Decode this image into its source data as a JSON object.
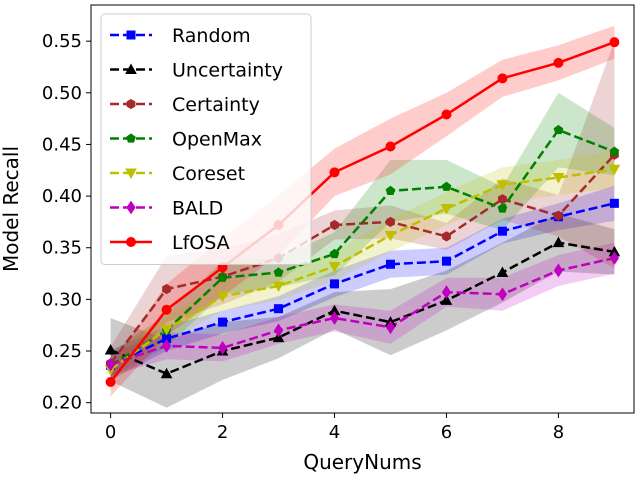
{
  "chart_data": {
    "type": "line",
    "title": "",
    "xlabel": "QueryNums",
    "ylabel": "Model Recall",
    "xlim": [
      -0.35,
      9.35
    ],
    "ylim": [
      0.19,
      0.585
    ],
    "xticks": [
      0,
      2,
      4,
      6,
      8
    ],
    "xtick_labels": [
      "0",
      "2",
      "4",
      "6",
      "8"
    ],
    "yticks": [
      0.2,
      0.25,
      0.3,
      0.35,
      0.4,
      0.45,
      0.5,
      0.55
    ],
    "ytick_labels": [
      "0.20",
      "0.25",
      "0.30",
      "0.35",
      "0.40",
      "0.45",
      "0.50",
      "0.55"
    ],
    "grid": false,
    "legend_position": "top-left",
    "x": [
      0,
      1,
      2,
      3,
      4,
      5,
      6,
      7,
      8,
      9
    ],
    "series": [
      {
        "name": "Random",
        "color": "#0000ff",
        "marker": "square",
        "dash": "dashed",
        "values": [
          0.236,
          0.262,
          0.278,
          0.291,
          0.315,
          0.334,
          0.337,
          0.366,
          0.38,
          0.393
        ],
        "lower": [
          0.222,
          0.25,
          0.267,
          0.279,
          0.302,
          0.321,
          0.324,
          0.354,
          0.367,
          0.376
        ],
        "upper": [
          0.251,
          0.274,
          0.289,
          0.303,
          0.328,
          0.347,
          0.35,
          0.378,
          0.393,
          0.41
        ]
      },
      {
        "name": "Uncertainty",
        "color": "#000000",
        "marker": "triangle",
        "dash": "dashed",
        "values": [
          0.251,
          0.228,
          0.25,
          0.263,
          0.289,
          0.278,
          0.299,
          0.326,
          0.355,
          0.346
        ],
        "lower": [
          0.221,
          0.195,
          0.222,
          0.243,
          0.271,
          0.246,
          0.27,
          0.297,
          0.327,
          0.324
        ],
        "upper": [
          0.282,
          0.261,
          0.278,
          0.283,
          0.307,
          0.31,
          0.328,
          0.355,
          0.383,
          0.368
        ]
      },
      {
        "name": "Certainty",
        "color": "#a52a2a",
        "marker": "hexagon",
        "dash": "dashed",
        "values": [
          0.238,
          0.31,
          0.322,
          0.34,
          0.372,
          0.375,
          0.361,
          0.397,
          0.381,
          0.44
        ],
        "lower": [
          0.222,
          0.278,
          0.295,
          0.317,
          0.358,
          0.359,
          0.348,
          0.377,
          0.361,
          0.33
        ],
        "upper": [
          0.254,
          0.342,
          0.349,
          0.363,
          0.386,
          0.391,
          0.374,
          0.417,
          0.401,
          0.55
        ]
      },
      {
        "name": "OpenMax",
        "color": "#008000",
        "marker": "pentagon",
        "dash": "dashed",
        "values": [
          0.236,
          0.27,
          0.321,
          0.326,
          0.344,
          0.405,
          0.409,
          0.388,
          0.464,
          0.443
        ],
        "lower": [
          0.224,
          0.254,
          0.305,
          0.312,
          0.323,
          0.375,
          0.383,
          0.367,
          0.428,
          0.42
        ],
        "upper": [
          0.248,
          0.286,
          0.337,
          0.34,
          0.365,
          0.435,
          0.435,
          0.409,
          0.5,
          0.466
        ]
      },
      {
        "name": "Coreset",
        "color": "#bfbf00",
        "marker": "triangle-down",
        "dash": "dashed",
        "values": [
          0.232,
          0.271,
          0.303,
          0.313,
          0.332,
          0.362,
          0.388,
          0.411,
          0.418,
          0.426
        ],
        "lower": [
          0.22,
          0.258,
          0.289,
          0.299,
          0.318,
          0.346,
          0.372,
          0.394,
          0.401,
          0.408
        ],
        "upper": [
          0.244,
          0.284,
          0.317,
          0.327,
          0.346,
          0.378,
          0.404,
          0.428,
          0.435,
          0.444
        ]
      },
      {
        "name": "BALD",
        "color": "#bf00bf",
        "marker": "diamond",
        "dash": "dashed",
        "values": [
          0.237,
          0.255,
          0.253,
          0.27,
          0.282,
          0.273,
          0.307,
          0.305,
          0.328,
          0.34
        ],
        "lower": [
          0.226,
          0.242,
          0.24,
          0.257,
          0.269,
          0.257,
          0.293,
          0.289,
          0.313,
          0.325
        ],
        "upper": [
          0.248,
          0.268,
          0.266,
          0.283,
          0.295,
          0.289,
          0.321,
          0.321,
          0.343,
          0.355
        ]
      },
      {
        "name": "LfOSA",
        "color": "#ff0000",
        "marker": "circle",
        "dash": "solid",
        "values": [
          0.22,
          0.29,
          0.331,
          0.372,
          0.423,
          0.448,
          0.479,
          0.514,
          0.529,
          0.549
        ],
        "lower": [
          0.206,
          0.265,
          0.303,
          0.343,
          0.4,
          0.421,
          0.458,
          0.496,
          0.512,
          0.533
        ],
        "upper": [
          0.234,
          0.315,
          0.359,
          0.401,
          0.446,
          0.475,
          0.5,
          0.532,
          0.546,
          0.565
        ]
      }
    ]
  }
}
